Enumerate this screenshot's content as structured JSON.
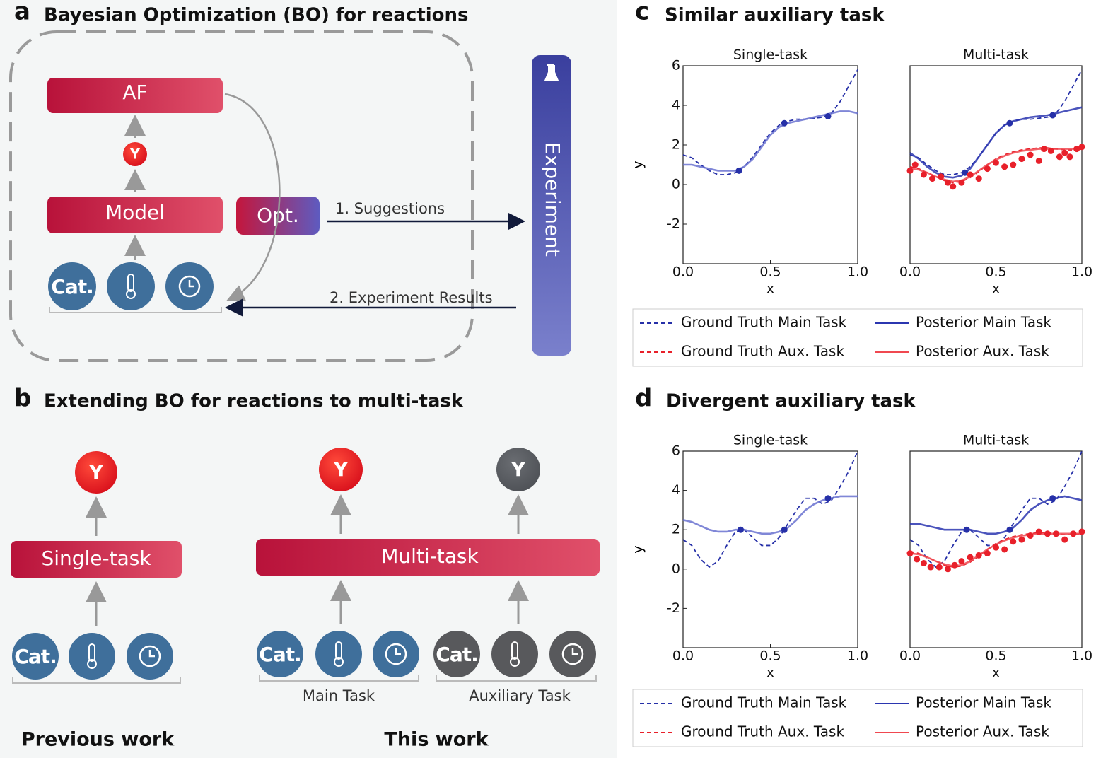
{
  "panel_a": {
    "label": "a",
    "title": "Bayesian Optimization (BO) for reactions",
    "af": "AF",
    "y": "Y",
    "model": "Model",
    "opt": "Opt.",
    "cat": "Cat.",
    "experiment": "Experiment",
    "suggestions": "1. Suggestions",
    "results": "2. Experiment Results"
  },
  "panel_b": {
    "label": "b",
    "title": "Extending BO for reactions to multi-task",
    "previous": {
      "y": "Y",
      "model": "Single-task",
      "cat": "Cat.",
      "caption": "Previous work"
    },
    "this": {
      "y_main": "Y",
      "y_aux": "Y",
      "model": "Multi-task",
      "cat_main": "Cat.",
      "cat_aux": "Cat.",
      "main_label": "Main Task",
      "aux_label": "Auxiliary Task",
      "caption": "This work"
    }
  },
  "panel_c": {
    "label": "c",
    "title": "Similar auxiliary task"
  },
  "panel_d": {
    "label": "d",
    "title": "Divergent auxiliary task"
  },
  "chart_data": [
    {
      "type": "line",
      "title": "Single-task",
      "x_label": "x",
      "y_label": "y",
      "x": [
        0,
        0.05,
        0.1,
        0.15,
        0.2,
        0.25,
        0.3,
        0.35,
        0.4,
        0.45,
        0.5,
        0.55,
        0.6,
        0.65,
        0.7,
        0.75,
        0.8,
        0.85,
        0.9,
        0.95,
        1.0
      ],
      "xlim": [
        0,
        1
      ],
      "ylim": [
        -4,
        6
      ],
      "xticks": [
        {
          "value": 0,
          "label": "0.0"
        },
        0.5,
        {
          "value": 1,
          "label": "1.0"
        }
      ],
      "yticks": [
        -2,
        0,
        2,
        4,
        6
      ],
      "series": [
        {
          "color": "#2630a8",
          "dashed": true,
          "values": [
            1.5,
            1.35,
            1.0,
            0.7,
            0.5,
            0.5,
            0.6,
            0.9,
            1.4,
            2.0,
            2.6,
            3.0,
            3.2,
            3.3,
            3.3,
            3.35,
            3.4,
            3.6,
            4.2,
            5.0,
            5.8
          ]
        },
        {
          "color": "#6a72d0",
          "dashed": false,
          "values": [
            1.0,
            1.0,
            0.9,
            0.8,
            0.7,
            0.7,
            0.7,
            0.9,
            1.3,
            1.9,
            2.5,
            2.9,
            3.1,
            3.2,
            3.3,
            3.4,
            3.5,
            3.6,
            3.7,
            3.7,
            3.6
          ]
        }
      ],
      "observations": [
        {
          "color": "#2630a8",
          "x": [
            0.32,
            0.58,
            0.83
          ],
          "y": [
            0.7,
            3.1,
            3.45
          ]
        }
      ]
    },
    {
      "type": "line",
      "title": "Multi-task",
      "x_label": "x",
      "x": [
        0,
        0.05,
        0.1,
        0.15,
        0.2,
        0.25,
        0.3,
        0.35,
        0.4,
        0.45,
        0.5,
        0.55,
        0.6,
        0.65,
        0.7,
        0.75,
        0.8,
        0.85,
        0.9,
        0.95,
        1.0
      ],
      "xlim": [
        0,
        1
      ],
      "ylim": [
        -4,
        6
      ],
      "xticks": [
        {
          "value": 0,
          "label": "0.0"
        },
        0.5,
        {
          "value": 1,
          "label": "1.0"
        }
      ],
      "series": [
        {
          "name": "Ground Truth Main Task",
          "color": "#2630a8",
          "dashed": true,
          "values": [
            1.5,
            1.35,
            1.0,
            0.7,
            0.5,
            0.5,
            0.6,
            0.9,
            1.4,
            2.0,
            2.6,
            3.0,
            3.2,
            3.3,
            3.3,
            3.35,
            3.4,
            3.6,
            4.2,
            5.0,
            5.8
          ]
        },
        {
          "name": "Posterior Main Task",
          "color": "#2b36b0",
          "dashed": false,
          "values": [
            1.6,
            1.3,
            0.9,
            0.6,
            0.4,
            0.35,
            0.45,
            0.8,
            1.4,
            2.0,
            2.6,
            3.0,
            3.2,
            3.3,
            3.4,
            3.45,
            3.5,
            3.6,
            3.7,
            3.8,
            3.9
          ]
        },
        {
          "name": "Ground Truth Aux. Task",
          "color": "#e8202a",
          "dashed": true,
          "values": [
            0.9,
            0.8,
            0.6,
            0.4,
            0.2,
            0.1,
            0.15,
            0.35,
            0.65,
            1.0,
            1.3,
            1.5,
            1.65,
            1.75,
            1.8,
            1.85,
            1.85,
            1.8,
            1.75,
            1.75,
            1.8
          ]
        },
        {
          "name": "Posterior Aux. Task",
          "color": "#f04850",
          "dashed": false,
          "values": [
            0.8,
            0.75,
            0.6,
            0.4,
            0.25,
            0.15,
            0.2,
            0.4,
            0.7,
            1.0,
            1.25,
            1.45,
            1.6,
            1.7,
            1.75,
            1.8,
            1.8,
            1.8,
            1.8,
            1.8,
            1.8
          ]
        }
      ],
      "observations": [
        {
          "color": "#2630a8",
          "x": [
            0.32,
            0.58,
            0.83
          ],
          "y": [
            0.6,
            3.1,
            3.5
          ]
        },
        {
          "color": "#e8202a",
          "x": [
            0.0,
            0.03,
            0.08,
            0.13,
            0.18,
            0.22,
            0.25,
            0.3,
            0.35,
            0.4,
            0.45,
            0.5,
            0.55,
            0.6,
            0.65,
            0.7,
            0.75,
            0.78,
            0.82,
            0.87,
            0.9,
            0.93,
            0.97,
            1.0
          ],
          "y": [
            0.7,
            1.0,
            0.5,
            0.3,
            0.4,
            0.1,
            -0.1,
            0.1,
            0.5,
            0.3,
            0.8,
            1.1,
            0.9,
            1.0,
            1.3,
            1.5,
            1.2,
            1.8,
            1.7,
            1.4,
            1.6,
            1.4,
            1.8,
            1.9
          ]
        }
      ]
    },
    {
      "type": "line",
      "title": "Single-task",
      "x_label": "x",
      "y_label": "y",
      "x": [
        0,
        0.05,
        0.1,
        0.15,
        0.2,
        0.25,
        0.3,
        0.35,
        0.4,
        0.45,
        0.5,
        0.55,
        0.6,
        0.65,
        0.7,
        0.75,
        0.8,
        0.85,
        0.9,
        0.95,
        1.0
      ],
      "xlim": [
        0,
        1
      ],
      "ylim": [
        -4,
        6
      ],
      "xticks": [
        {
          "value": 0,
          "label": "0.0"
        },
        0.5,
        {
          "value": 1,
          "label": "1.0"
        }
      ],
      "yticks": [
        -2,
        0,
        2,
        4,
        6
      ],
      "series": [
        {
          "color": "#2630a8",
          "dashed": true,
          "values": [
            1.5,
            1.2,
            0.5,
            0.1,
            0.4,
            1.2,
            1.9,
            2.0,
            1.6,
            1.2,
            1.2,
            1.6,
            2.3,
            3.0,
            3.6,
            3.6,
            3.3,
            3.5,
            4.2,
            5.0,
            6.0
          ]
        },
        {
          "color": "#6a72d0",
          "dashed": false,
          "values": [
            2.5,
            2.4,
            2.2,
            2.0,
            1.9,
            1.9,
            2.0,
            2.0,
            1.9,
            1.8,
            1.8,
            1.9,
            2.1,
            2.5,
            3.0,
            3.3,
            3.5,
            3.6,
            3.7,
            3.7,
            3.7
          ]
        }
      ],
      "observations": [
        {
          "color": "#2630a8",
          "x": [
            0.33,
            0.58,
            0.83
          ],
          "y": [
            2.0,
            2.0,
            3.6
          ]
        }
      ]
    },
    {
      "type": "line",
      "title": "Multi-task",
      "x_label": "x",
      "x": [
        0,
        0.05,
        0.1,
        0.15,
        0.2,
        0.25,
        0.3,
        0.35,
        0.4,
        0.45,
        0.5,
        0.55,
        0.6,
        0.65,
        0.7,
        0.75,
        0.8,
        0.85,
        0.9,
        0.95,
        1.0
      ],
      "xlim": [
        0,
        1
      ],
      "ylim": [
        -4,
        6
      ],
      "xticks": [
        {
          "value": 0,
          "label": "0.0"
        },
        0.5,
        {
          "value": 1,
          "label": "1.0"
        }
      ],
      "series": [
        {
          "name": "Ground Truth Main Task",
          "color": "#2630a8",
          "dashed": true,
          "values": [
            1.5,
            1.2,
            0.5,
            0.1,
            0.4,
            1.2,
            1.9,
            2.0,
            1.6,
            1.2,
            1.2,
            1.6,
            2.3,
            3.0,
            3.6,
            3.6,
            3.3,
            3.5,
            4.2,
            5.0,
            6.0
          ]
        },
        {
          "name": "Posterior Main Task",
          "color": "#2b36b0",
          "dashed": false,
          "values": [
            2.3,
            2.3,
            2.2,
            2.1,
            2.0,
            2.0,
            2.0,
            2.0,
            1.9,
            1.8,
            1.8,
            1.9,
            2.1,
            2.5,
            3.0,
            3.3,
            3.5,
            3.6,
            3.7,
            3.6,
            3.5
          ]
        },
        {
          "name": "Ground Truth Aux. Task",
          "color": "#e8202a",
          "dashed": true,
          "values": [
            0.9,
            0.8,
            0.6,
            0.4,
            0.2,
            0.1,
            0.15,
            0.35,
            0.65,
            1.0,
            1.3,
            1.5,
            1.65,
            1.75,
            1.8,
            1.85,
            1.85,
            1.8,
            1.75,
            1.75,
            1.8
          ]
        },
        {
          "name": "Posterior Aux. Task",
          "color": "#f04850",
          "dashed": false,
          "values": [
            0.8,
            0.75,
            0.6,
            0.4,
            0.25,
            0.15,
            0.2,
            0.4,
            0.7,
            1.0,
            1.25,
            1.45,
            1.6,
            1.7,
            1.75,
            1.8,
            1.8,
            1.8,
            1.8,
            1.8,
            1.8
          ]
        }
      ],
      "observations": [
        {
          "color": "#2630a8",
          "x": [
            0.33,
            0.58,
            0.83
          ],
          "y": [
            2.0,
            2.0,
            3.6
          ]
        },
        {
          "color": "#e8202a",
          "x": [
            0.0,
            0.04,
            0.08,
            0.12,
            0.17,
            0.22,
            0.26,
            0.3,
            0.35,
            0.4,
            0.45,
            0.5,
            0.55,
            0.6,
            0.65,
            0.7,
            0.75,
            0.8,
            0.85,
            0.9,
            0.95,
            1.0
          ],
          "y": [
            0.8,
            0.5,
            0.3,
            0.1,
            0.1,
            0.0,
            0.2,
            0.4,
            0.6,
            0.7,
            0.8,
            1.1,
            1.0,
            1.4,
            1.5,
            1.7,
            1.9,
            1.8,
            1.8,
            1.5,
            1.8,
            1.9
          ]
        }
      ]
    }
  ]
}
